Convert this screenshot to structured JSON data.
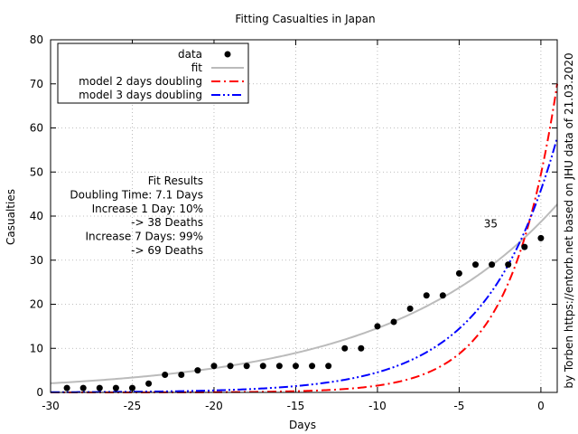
{
  "chart_data": {
    "type": "scatter",
    "title": "Fitting Casualties in Japan",
    "xlabel": "Days",
    "ylabel": "Casualties",
    "xlim": [
      -30,
      1
    ],
    "ylim": [
      0,
      80
    ],
    "xticks": [
      -30,
      -25,
      -20,
      -15,
      -10,
      -5,
      0
    ],
    "yticks": [
      0,
      10,
      20,
      30,
      40,
      50,
      60,
      70,
      80
    ],
    "grid": true,
    "legend_position": "top-left",
    "series": [
      {
        "name": "data",
        "kind": "points",
        "color": "#000000",
        "x": [
          -29,
          -28,
          -27,
          -26,
          -25,
          -24,
          -23,
          -22,
          -21,
          -20,
          -19,
          -18,
          -17,
          -16,
          -15,
          -14,
          -13,
          -12,
          -11,
          -10,
          -9,
          -8,
          -7,
          -6,
          -5,
          -4,
          -3,
          -2,
          -1,
          0
        ],
        "y": [
          1,
          1,
          1,
          1,
          1,
          2,
          4,
          4,
          5,
          6,
          6,
          6,
          6,
          6,
          6,
          6,
          6,
          10,
          10,
          15,
          16,
          19,
          22,
          22,
          27,
          29,
          29,
          29,
          33,
          35
        ]
      },
      {
        "name": "fit",
        "kind": "curve",
        "color": "#bbbbbb",
        "dash": "solid",
        "model": "exponential",
        "value_at_0": 38.7,
        "doubling_days": 7.1
      },
      {
        "name": "model 2 days doubling",
        "kind": "curve",
        "color": "#ff0000",
        "dash": "dash-dot",
        "model": "exponential",
        "value_at_0": 49.5,
        "doubling_days": 2
      },
      {
        "name": "model 3 days doubling",
        "kind": "curve",
        "color": "#0000ff",
        "dash": "dash-dot-dot",
        "model": "exponential",
        "value_at_0": 45.9,
        "doubling_days": 3
      }
    ],
    "annotations": {
      "fit_results": [
        "Fit Results",
        "Doubling Time: 7.1 Days",
        "Increase 1 Day: 10%",
        "-> 38 Deaths",
        "Increase 7 Days: 99%",
        "-> 69 Deaths"
      ],
      "point_label": {
        "text": "35",
        "x": -2.2,
        "y": 35
      },
      "credit": "by Torben https://entorb.net based on JHU data of 21.03.2020"
    }
  }
}
